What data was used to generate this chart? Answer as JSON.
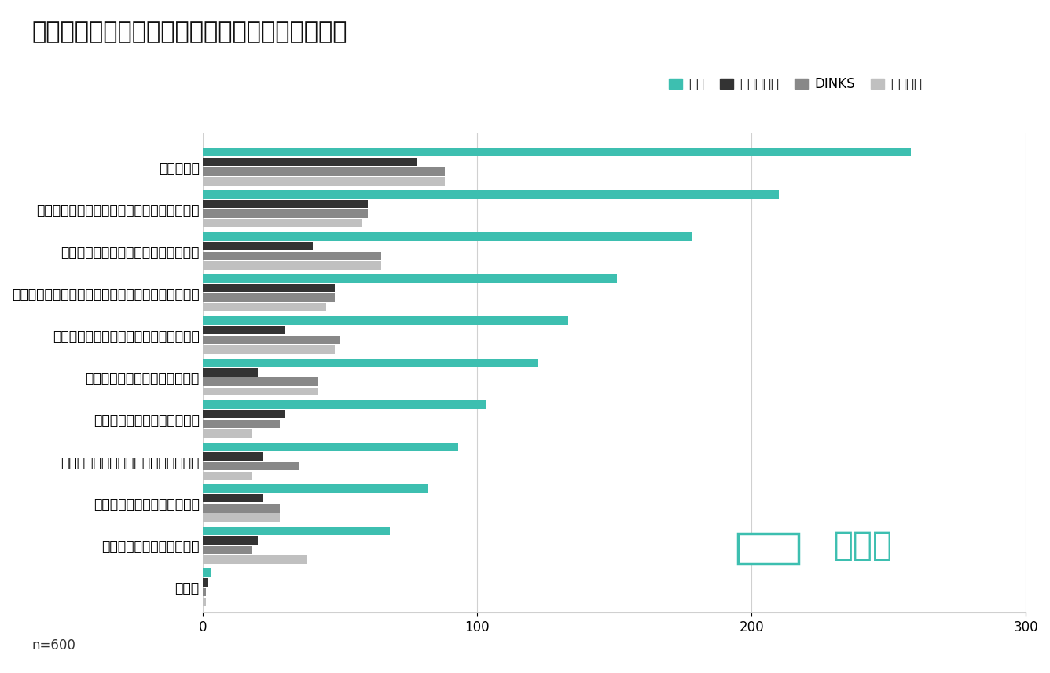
{
  "title": "居住用物件の購入を検討していて困っていること",
  "categories": [
    "その他",
    "特に困っていることはない",
    "購入のステップがわからない",
    "営業担当者が信用できるかわからない",
    "営業電話やメールがしつこい",
    "どの物件がいいのかわからない",
    "予算や購入にかかる費用感がわからない",
    "希望物件はあるが価格の妥当性や相場がわからない",
    "将来を考えると購入して良いのか不安",
    "自分の希望条件にあった物件が見つからない",
    "価格が高い"
  ],
  "series": {
    "全体": [
      3,
      68,
      82,
      93,
      103,
      122,
      133,
      151,
      178,
      210,
      258
    ],
    "子育て世帯": [
      2,
      20,
      22,
      22,
      30,
      20,
      30,
      48,
      40,
      60,
      78
    ],
    "DINKS": [
      1,
      18,
      28,
      35,
      28,
      42,
      50,
      48,
      65,
      60,
      88
    ],
    "単身世帯": [
      1,
      38,
      28,
      18,
      18,
      42,
      48,
      45,
      65,
      58,
      88
    ]
  },
  "colors": {
    "全体": "#3dbfb0",
    "子育て世帯": "#333333",
    "DINKS": "#888888",
    "単身世帯": "#c0c0c0"
  },
  "legend_order": [
    "全体",
    "子育て世帯",
    "DINKS",
    "単身世帯"
  ],
  "xlim": [
    0,
    300
  ],
  "xticks": [
    0,
    100,
    200,
    300
  ],
  "note": "n=600",
  "background_color": "#ffffff"
}
